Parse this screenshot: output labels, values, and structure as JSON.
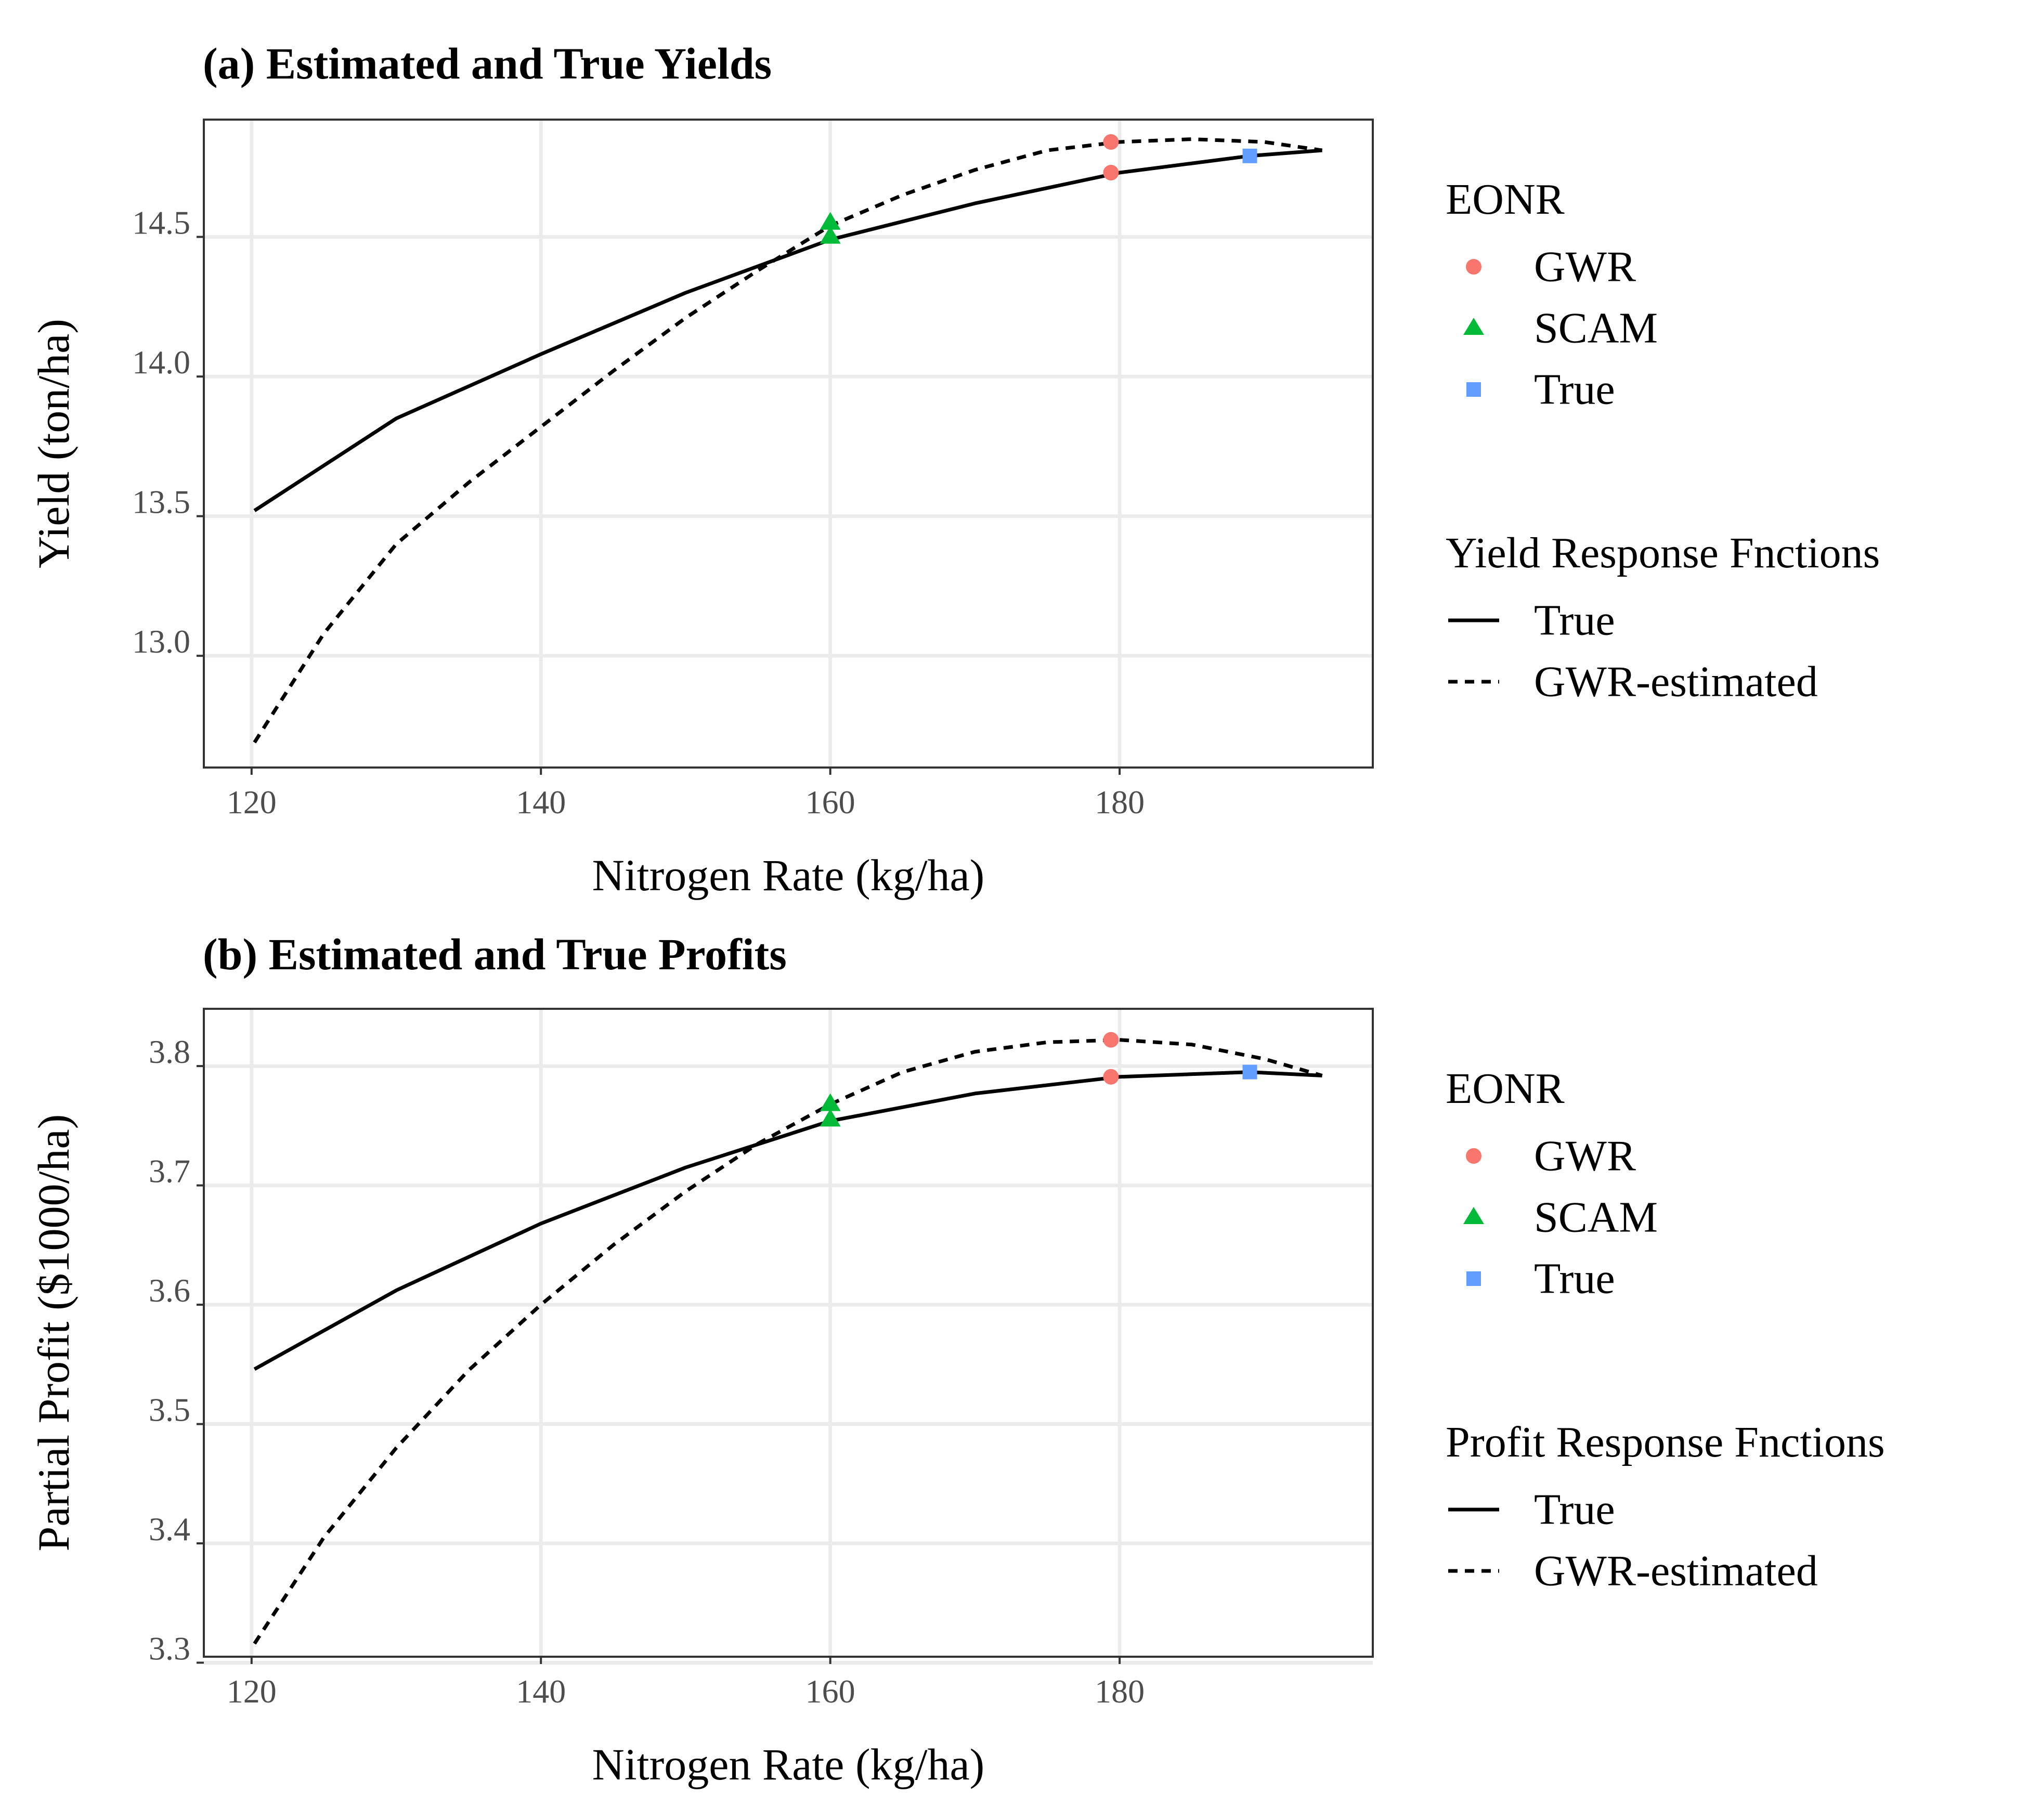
{
  "panels": [
    {
      "title": "(a) Estimated and True Yields",
      "eonr_legend": {
        "title": "EONR",
        "items": [
          {
            "label": "GWR",
            "shape": "circle",
            "color": "#F8766D"
          },
          {
            "label": "SCAM",
            "shape": "triangle",
            "color": "#00BA38"
          },
          {
            "label": "True",
            "shape": "square",
            "color": "#619CFF"
          }
        ]
      },
      "curve_legend": {
        "title": "Yield Response Fnctions",
        "items": [
          {
            "label": "True",
            "linetype": "solid"
          },
          {
            "label": "GWR-estimated",
            "linetype": "dashed"
          }
        ]
      }
    },
    {
      "title": "(b) Estimated and True Profits",
      "eonr_legend": {
        "title": "EONR",
        "items": [
          {
            "label": "GWR",
            "shape": "circle",
            "color": "#F8766D"
          },
          {
            "label": "SCAM",
            "shape": "triangle",
            "color": "#00BA38"
          },
          {
            "label": "True",
            "shape": "square",
            "color": "#619CFF"
          }
        ]
      },
      "curve_legend": {
        "title": "Profit Response Fnctions",
        "items": [
          {
            "label": "True",
            "linetype": "solid"
          },
          {
            "label": "GWR-estimated",
            "linetype": "dashed"
          }
        ]
      }
    }
  ],
  "chart_data": [
    {
      "type": "line",
      "title": "(a) Estimated and True Yields",
      "xlabel": "Nitrogen Rate (kg/ha)",
      "ylabel": "Yield (ton/ha)",
      "xlim": [
        116.7,
        197.5
      ],
      "ylim": [
        12.6,
        14.92
      ],
      "xticks": [
        120,
        140,
        160,
        180
      ],
      "xtick_labels": [
        "120",
        "140",
        "160",
        "180"
      ],
      "yticks": [
        13.0,
        13.5,
        14.0,
        14.5
      ],
      "ytick_labels": [
        "13.0",
        "13.5",
        "14.0",
        "14.5"
      ],
      "grid": true,
      "series": [
        {
          "name": "True",
          "linetype": "solid",
          "x": [
            120.2,
            130,
            140,
            150,
            160,
            170,
            180,
            189,
            194
          ],
          "y": [
            13.52,
            13.85,
            14.08,
            14.3,
            14.49,
            14.62,
            14.73,
            14.79,
            14.81
          ]
        },
        {
          "name": "GWR-estimated",
          "linetype": "dashed",
          "x": [
            120.2,
            125,
            130,
            135,
            140,
            145,
            150,
            155,
            160,
            165,
            170,
            175,
            180,
            185,
            190,
            194
          ],
          "y": [
            12.69,
            13.08,
            13.4,
            13.62,
            13.82,
            14.02,
            14.21,
            14.38,
            14.54,
            14.65,
            14.74,
            14.81,
            14.84,
            14.85,
            14.84,
            14.81
          ]
        }
      ],
      "points": [
        {
          "legend": "GWR",
          "shape": "circle",
          "color": "#F8766D",
          "x": 179.4,
          "y": 14.84
        },
        {
          "legend": "GWR",
          "shape": "circle",
          "color": "#F8766D",
          "x": 179.4,
          "y": 14.73
        },
        {
          "legend": "SCAM",
          "shape": "triangle",
          "color": "#00BA38",
          "x": 160.0,
          "y": 14.55
        },
        {
          "legend": "SCAM",
          "shape": "triangle",
          "color": "#00BA38",
          "x": 160.0,
          "y": 14.5
        },
        {
          "legend": "True",
          "shape": "square",
          "color": "#619CFF",
          "x": 189.0,
          "y": 14.79
        }
      ]
    },
    {
      "type": "line",
      "title": "(b) Estimated and True Profits",
      "xlabel": "Nitrogen Rate (kg/ha)",
      "ylabel": "Partial Profit ($1000/ha)",
      "xlim": [
        116.7,
        197.5
      ],
      "ylim": [
        3.305,
        3.848
      ],
      "xticks": [
        120,
        140,
        160,
        180
      ],
      "xtick_labels": [
        "120",
        "140",
        "160",
        "180"
      ],
      "yticks": [
        3.3,
        3.4,
        3.5,
        3.6,
        3.7,
        3.8
      ],
      "ytick_labels": [
        "3.3",
        "3.4",
        "3.5",
        "3.6",
        "3.7",
        "3.8"
      ],
      "grid": true,
      "series": [
        {
          "name": "True",
          "linetype": "solid",
          "x": [
            120.2,
            130,
            140,
            150,
            160,
            170,
            180,
            189,
            194
          ],
          "y": [
            3.546,
            3.612,
            3.668,
            3.715,
            3.754,
            3.777,
            3.791,
            3.795,
            3.792
          ]
        },
        {
          "name": "GWR-estimated",
          "linetype": "dashed",
          "x": [
            120.2,
            125,
            130,
            135,
            140,
            145,
            150,
            155,
            160,
            165,
            170,
            175,
            180,
            185,
            190,
            194
          ],
          "y": [
            3.316,
            3.405,
            3.48,
            3.545,
            3.6,
            3.65,
            3.695,
            3.735,
            3.768,
            3.795,
            3.812,
            3.82,
            3.822,
            3.818,
            3.806,
            3.792
          ]
        }
      ],
      "points": [
        {
          "legend": "GWR",
          "shape": "circle",
          "color": "#F8766D",
          "x": 179.4,
          "y": 3.822
        },
        {
          "legend": "GWR",
          "shape": "circle",
          "color": "#F8766D",
          "x": 179.4,
          "y": 3.791
        },
        {
          "legend": "SCAM",
          "shape": "triangle",
          "color": "#00BA38",
          "x": 160.0,
          "y": 3.768
        },
        {
          "legend": "SCAM",
          "shape": "triangle",
          "color": "#00BA38",
          "x": 160.0,
          "y": 3.755
        },
        {
          "legend": "True",
          "shape": "square",
          "color": "#619CFF",
          "x": 189.0,
          "y": 3.795
        }
      ]
    }
  ]
}
